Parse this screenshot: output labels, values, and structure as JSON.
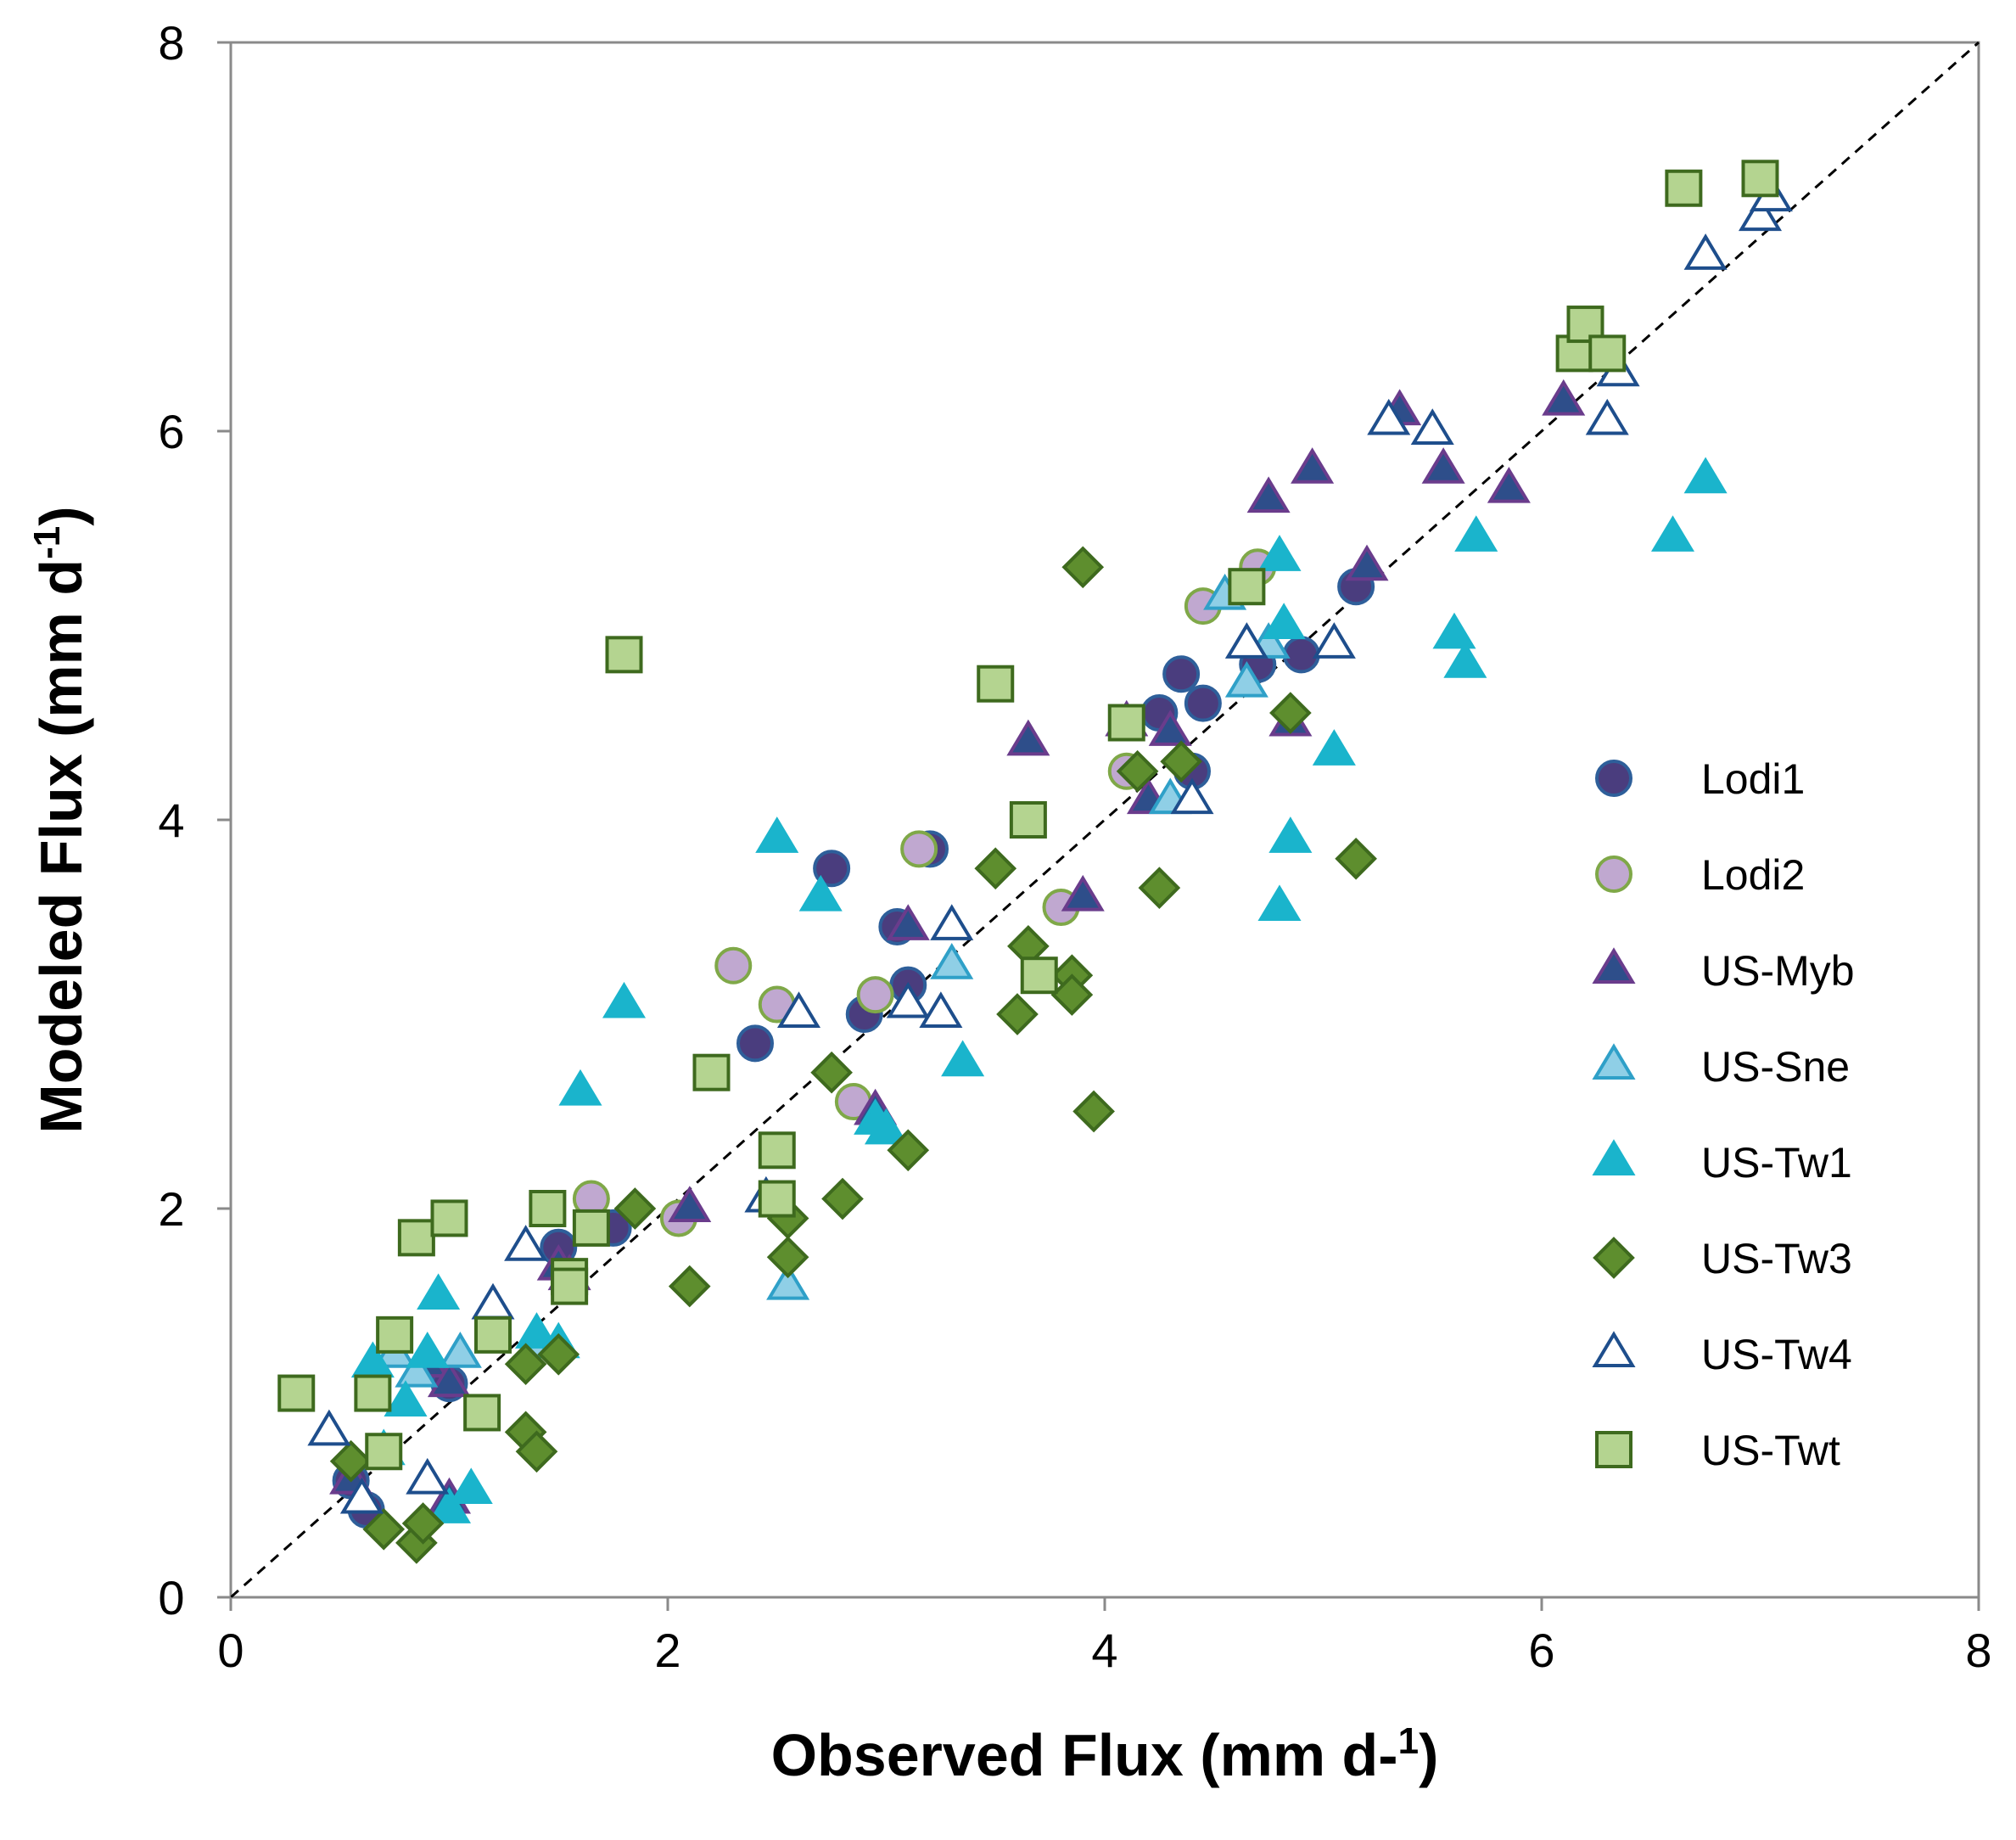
{
  "chart_data": {
    "type": "scatter",
    "xlabel": "Observed Flux (mm d-¹)",
    "ylabel": "Modeled Flux (mm d-¹)",
    "xlabel_main": "Observed Flux (mm d-",
    "xlabel_sup": "1",
    "xlabel_close": ")",
    "ylabel_main": "Modeled Flux (mm d",
    "ylabel_sup": "-1",
    "ylabel_close": ")",
    "xlim": [
      0,
      8
    ],
    "ylim": [
      0,
      8
    ],
    "xticks": [
      0,
      2,
      4,
      6,
      8
    ],
    "yticks": [
      0,
      2,
      4,
      6,
      8
    ],
    "grid": false,
    "one_to_one_line": true,
    "legend_position": "right",
    "series": [
      {
        "name": "Lodi1",
        "marker": "circle",
        "fill": "#4A3D7E",
        "stroke": "#2E5F9A",
        "points": [
          [
            0.55,
            0.6
          ],
          [
            0.62,
            0.45
          ],
          [
            1.0,
            1.1
          ],
          [
            1.5,
            1.8
          ],
          [
            1.75,
            1.9
          ],
          [
            2.4,
            2.85
          ],
          [
            2.75,
            3.75
          ],
          [
            2.9,
            3.0
          ],
          [
            3.05,
            3.45
          ],
          [
            3.1,
            3.15
          ],
          [
            3.2,
            3.85
          ],
          [
            4.25,
            4.55
          ],
          [
            4.35,
            4.75
          ],
          [
            4.4,
            4.25
          ],
          [
            4.45,
            4.6
          ],
          [
            4.7,
            4.8
          ],
          [
            4.9,
            4.85
          ],
          [
            5.15,
            5.2
          ]
        ]
      },
      {
        "name": "Lodi2",
        "marker": "circle",
        "fill": "#C0A8D0",
        "stroke": "#7FA848",
        "points": [
          [
            1.65,
            2.05
          ],
          [
            2.05,
            1.95
          ],
          [
            2.3,
            3.25
          ],
          [
            2.5,
            3.05
          ],
          [
            2.85,
            2.55
          ],
          [
            2.95,
            3.1
          ],
          [
            3.15,
            3.85
          ],
          [
            3.8,
            3.55
          ],
          [
            4.1,
            4.25
          ],
          [
            4.45,
            5.1
          ],
          [
            4.7,
            5.3
          ]
        ]
      },
      {
        "name": "US-Myb",
        "marker": "triangle",
        "fill": "#2E4E8A",
        "stroke": "#6A3C8C",
        "points": [
          [
            0.55,
            0.6
          ],
          [
            0.6,
            0.5
          ],
          [
            0.9,
            1.2
          ],
          [
            1.0,
            0.5
          ],
          [
            1.0,
            1.1
          ],
          [
            1.5,
            1.7
          ],
          [
            1.55,
            1.65
          ],
          [
            2.1,
            2.0
          ],
          [
            2.95,
            2.5
          ],
          [
            3.1,
            3.45
          ],
          [
            3.65,
            4.4
          ],
          [
            3.9,
            3.6
          ],
          [
            4.1,
            4.5
          ],
          [
            4.2,
            4.1
          ],
          [
            4.3,
            4.45
          ],
          [
            4.75,
            5.65
          ],
          [
            4.85,
            4.5
          ],
          [
            4.95,
            5.8
          ],
          [
            5.2,
            5.3
          ],
          [
            5.35,
            6.1
          ],
          [
            5.55,
            5.8
          ],
          [
            5.85,
            5.7
          ],
          [
            6.1,
            6.15
          ]
        ]
      },
      {
        "name": "US-Sne",
        "marker": "triangle",
        "fill": "#8FCFE6",
        "stroke": "#2FA0C8",
        "points": [
          [
            0.75,
            1.25
          ],
          [
            0.85,
            1.15
          ],
          [
            1.05,
            1.25
          ],
          [
            1.4,
            1.3
          ],
          [
            2.55,
            1.6
          ],
          [
            3.3,
            3.25
          ],
          [
            4.3,
            4.1
          ],
          [
            4.55,
            5.15
          ],
          [
            4.65,
            4.7
          ],
          [
            4.75,
            4.9
          ]
        ]
      },
      {
        "name": "US-Tw1",
        "marker": "triangle",
        "fill": "#1AB4CC",
        "stroke": "#1AB4CC",
        "points": [
          [
            0.65,
            1.2
          ],
          [
            0.7,
            0.75
          ],
          [
            0.8,
            1.0
          ],
          [
            0.9,
            1.25
          ],
          [
            0.95,
            1.55
          ],
          [
            1.0,
            0.45
          ],
          [
            1.1,
            0.55
          ],
          [
            1.4,
            1.35
          ],
          [
            1.5,
            1.3
          ],
          [
            1.6,
            2.6
          ],
          [
            1.8,
            3.05
          ],
          [
            2.5,
            3.9
          ],
          [
            2.7,
            3.6
          ],
          [
            2.95,
            2.45
          ],
          [
            3.0,
            2.4
          ],
          [
            3.35,
            2.75
          ],
          [
            4.8,
            3.55
          ],
          [
            4.8,
            5.35
          ],
          [
            4.82,
            5.0
          ],
          [
            4.85,
            3.9
          ],
          [
            5.05,
            4.35
          ],
          [
            5.6,
            4.95
          ],
          [
            5.65,
            4.8
          ],
          [
            5.7,
            5.45
          ],
          [
            6.6,
            5.45
          ],
          [
            6.75,
            5.75
          ]
        ]
      },
      {
        "name": "US-Tw3",
        "marker": "diamond",
        "fill": "#5E8E2E",
        "stroke": "#3E6A1E",
        "points": [
          [
            0.55,
            0.7
          ],
          [
            0.7,
            0.35
          ],
          [
            0.85,
            0.28
          ],
          [
            0.88,
            0.38
          ],
          [
            1.35,
            1.2
          ],
          [
            1.35,
            0.85
          ],
          [
            1.4,
            0.75
          ],
          [
            1.5,
            1.25
          ],
          [
            1.85,
            2.0
          ],
          [
            2.1,
            1.6
          ],
          [
            2.55,
            1.95
          ],
          [
            2.55,
            1.75
          ],
          [
            2.75,
            2.7
          ],
          [
            2.8,
            2.05
          ],
          [
            3.1,
            2.3
          ],
          [
            3.5,
            3.75
          ],
          [
            3.6,
            3.0
          ],
          [
            3.65,
            3.35
          ],
          [
            3.85,
            3.2
          ],
          [
            3.85,
            3.1
          ],
          [
            3.9,
            5.3
          ],
          [
            3.95,
            2.5
          ],
          [
            4.15,
            4.25
          ],
          [
            4.25,
            3.65
          ],
          [
            4.35,
            4.3
          ],
          [
            4.85,
            4.55
          ],
          [
            5.15,
            3.8
          ]
        ]
      },
      {
        "name": "US-Tw4",
        "marker": "triangle",
        "fill": "#FFFFFF",
        "stroke": "#1E4E8C",
        "points": [
          [
            0.45,
            0.85
          ],
          [
            0.6,
            0.5
          ],
          [
            0.9,
            0.6
          ],
          [
            1.2,
            1.5
          ],
          [
            1.35,
            1.8
          ],
          [
            2.45,
            2.05
          ],
          [
            2.6,
            3.0
          ],
          [
            3.1,
            3.05
          ],
          [
            3.25,
            3.0
          ],
          [
            3.3,
            3.45
          ],
          [
            4.4,
            4.1
          ],
          [
            4.65,
            4.9
          ],
          [
            5.05,
            4.9
          ],
          [
            5.3,
            6.05
          ],
          [
            5.5,
            6.0
          ],
          [
            6.3,
            6.05
          ],
          [
            6.35,
            6.3
          ],
          [
            6.75,
            6.9
          ],
          [
            7.0,
            7.1
          ],
          [
            7.05,
            7.2
          ]
        ]
      },
      {
        "name": "US-Twt",
        "marker": "square",
        "fill": "#B4D490",
        "stroke": "#3E6A1E",
        "points": [
          [
            0.3,
            1.05
          ],
          [
            0.65,
            1.05
          ],
          [
            0.7,
            0.75
          ],
          [
            0.75,
            1.35
          ],
          [
            0.85,
            1.85
          ],
          [
            1.0,
            1.95
          ],
          [
            1.15,
            0.95
          ],
          [
            1.2,
            1.35
          ],
          [
            1.45,
            2.0
          ],
          [
            1.55,
            1.65
          ],
          [
            1.55,
            1.6
          ],
          [
            1.65,
            1.9
          ],
          [
            1.8,
            4.85
          ],
          [
            2.2,
            2.7
          ],
          [
            2.5,
            2.05
          ],
          [
            2.5,
            2.3
          ],
          [
            3.5,
            4.7
          ],
          [
            3.65,
            4.0
          ],
          [
            3.7,
            3.2
          ],
          [
            4.1,
            4.5
          ],
          [
            4.65,
            5.2
          ],
          [
            6.15,
            6.4
          ],
          [
            6.2,
            6.55
          ],
          [
            6.3,
            6.4
          ],
          [
            6.65,
            7.25
          ],
          [
            7.0,
            7.3
          ]
        ]
      }
    ]
  }
}
